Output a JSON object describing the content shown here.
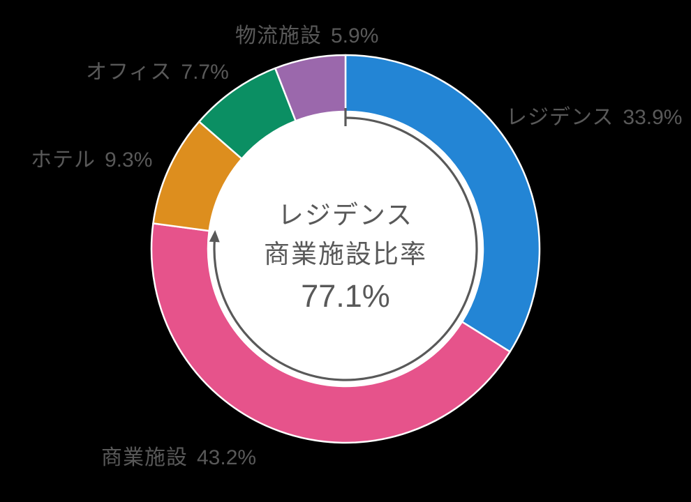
{
  "page": {
    "background": "#000000"
  },
  "chart_data": {
    "type": "pie",
    "subtype": "donut",
    "unit": "%",
    "direction": "clockwise",
    "start_angle_deg": 0,
    "segments": [
      {
        "id": "residence",
        "label": "レジデンス",
        "value": 33.9,
        "value_label": "33.9%",
        "color": "#2385d5"
      },
      {
        "id": "commercial",
        "label": "商業施設",
        "value": 43.2,
        "value_label": "43.2%",
        "color": "#e6538b"
      },
      {
        "id": "hotel",
        "label": "ホテル",
        "value": 9.3,
        "value_label": "9.3%",
        "color": "#dd8e1e"
      },
      {
        "id": "office",
        "label": "オフィス",
        "value": 7.7,
        "value_label": "7.7%",
        "color": "#0b8f63"
      },
      {
        "id": "logistics",
        "label": "物流施設",
        "value": 5.9,
        "value_label": "5.9%",
        "color": "#9b68ac"
      }
    ],
    "center_annotation": {
      "line1": "レジデンス",
      "line2": "商業施設比率",
      "value": "77.1%",
      "arc_percent": 77.1,
      "arc_color": "#595959"
    },
    "label_color": "#595959",
    "segment_gap_color": "#ffffff",
    "hole_color": "#ffffff"
  }
}
